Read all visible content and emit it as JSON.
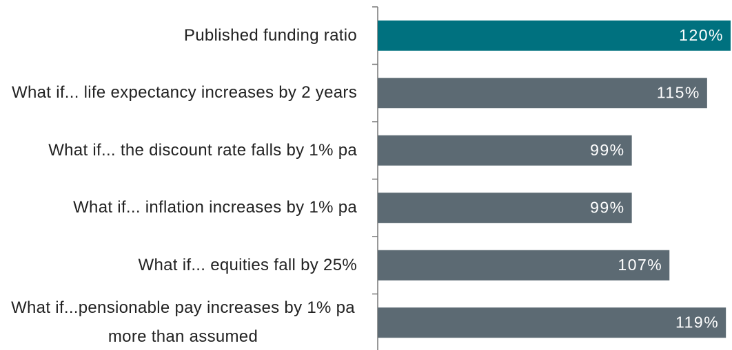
{
  "chart_data": {
    "type": "bar",
    "orientation": "horizontal",
    "categories": [
      "Published funding ratio",
      "What if... life expectancy increases by 2 years",
      "What if... the discount rate falls by 1% pa",
      "What if... inflation increases by 1% pa",
      "What if... equities fall by 25%",
      "What if...pensionable pay increases by 1% pa more than assumed"
    ],
    "values": [
      120,
      115,
      99,
      99,
      107,
      119
    ],
    "value_labels": [
      "120%",
      "115%",
      "99%",
      "99%",
      "107%",
      "119%"
    ],
    "colors": [
      "#00717f",
      "#5c6a73",
      "#5c6a73",
      "#5c6a73",
      "#5c6a73",
      "#5c6a73"
    ],
    "xlim": [
      45,
      120
    ]
  }
}
